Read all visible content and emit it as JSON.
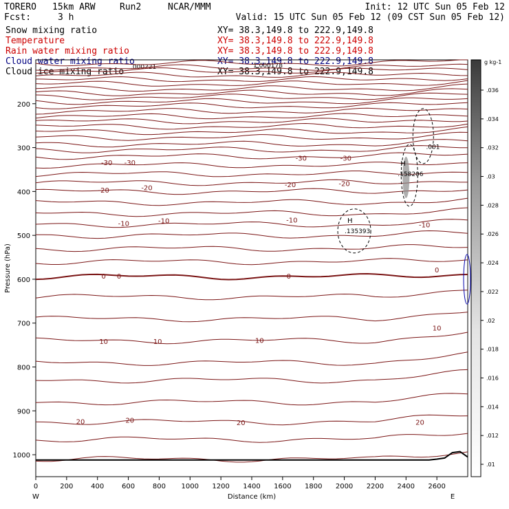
{
  "header": {
    "model": "TORERO",
    "resolution": "15km ARW",
    "run": "Run2",
    "org": "NCAR/MMM",
    "init": "Init: 12 UTC Sun 05 Feb 12",
    "fcst_label": "Fcst:",
    "fcst_value": "3 h",
    "valid": "Valid: 15 UTC Sun 05 Feb 12 (09 CST Sun 05 Feb 12)"
  },
  "fields": [
    {
      "name": "Snow mixing ratio",
      "xy": "XY=  38.3,149.8 to 222.9,149.8",
      "color": "#000000"
    },
    {
      "name": "Temperature",
      "xy": "XY=  38.3,149.8 to 222.9,149.8",
      "color": "#cc0000"
    },
    {
      "name": "Rain water mixing ratio",
      "xy": "XY=  38.3,149.8 to 222.9,149.8",
      "color": "#cc0000"
    },
    {
      "name": "Cloud water mixing ratio",
      "xy": "XY=  38.3,149.8 to 222.9,149.8",
      "color": "#000080"
    },
    {
      "name": "Cloud ice mixing ratio",
      "xy": "XY=  38.3,149.8 to 222.9,149.8",
      "color": "#000000"
    }
  ],
  "overlay_values": {
    "a": ".000221",
    "b": "1.000178"
  },
  "colors": {
    "temperature": "#7a1414",
    "zero_line": "#7a1414",
    "cloud_water": "#0000aa"
  },
  "chart_data": {
    "type": "cross-section",
    "xlabel": "Distance (km)",
    "ylabel": "Pressure (hPa)",
    "xlim": [
      0,
      2800
    ],
    "ylim": [
      1050,
      100
    ],
    "x_ticks": [
      0,
      200,
      400,
      600,
      800,
      1000,
      1200,
      1400,
      1600,
      1800,
      2000,
      2200,
      2400,
      2600
    ],
    "y_ticks": [
      200,
      300,
      400,
      500,
      600,
      700,
      800,
      900,
      1000
    ],
    "left_end": "W",
    "right_end": "E",
    "temperature_labels": [
      {
        "text": "-30",
        "x": 460,
        "p": 335
      },
      {
        "text": "-30",
        "x": 610,
        "p": 335
      },
      {
        "text": "-30",
        "x": 1720,
        "p": 325
      },
      {
        "text": "-30",
        "x": 2010,
        "p": 325
      },
      {
        "text": "-20",
        "x": 440,
        "p": 398
      },
      {
        "text": "-20",
        "x": 720,
        "p": 392
      },
      {
        "text": "-20",
        "x": 1650,
        "p": 385
      },
      {
        "text": "-20",
        "x": 2000,
        "p": 383
      },
      {
        "text": "-10",
        "x": 570,
        "p": 474
      },
      {
        "text": "-10",
        "x": 830,
        "p": 468
      },
      {
        "text": "-10",
        "x": 1660,
        "p": 466
      },
      {
        "text": "-10",
        "x": 2520,
        "p": 477
      },
      {
        "text": "0",
        "x": 440,
        "p": 594
      },
      {
        "text": "0",
        "x": 540,
        "p": 594
      },
      {
        "text": "0",
        "x": 1640,
        "p": 594
      },
      {
        "text": "0",
        "x": 2600,
        "p": 580
      },
      {
        "text": "10",
        "x": 440,
        "p": 743
      },
      {
        "text": "10",
        "x": 790,
        "p": 743
      },
      {
        "text": "10",
        "x": 1450,
        "p": 740
      },
      {
        "text": "10",
        "x": 2600,
        "p": 712
      },
      {
        "text": "20",
        "x": 290,
        "p": 925
      },
      {
        "text": "20",
        "x": 610,
        "p": 922
      },
      {
        "text": "20",
        "x": 1330,
        "p": 928
      },
      {
        "text": "20",
        "x": 2490,
        "p": 927
      }
    ],
    "snow_maxima": [
      {
        "marker": "H",
        "label": ".158206",
        "x": 2400,
        "p": 360
      },
      {
        "marker": "H",
        "label": ".135393",
        "x": 2020,
        "p": 490
      }
    ],
    "snow_contour_label": {
      "text": ".001",
      "x": 2530,
      "p": 298
    },
    "colorbar": {
      "units": "g kg-1",
      "ticks": [
        ".036",
        ".034",
        ".032",
        ".03",
        ".028",
        ".026",
        ".024",
        ".022",
        ".02",
        ".018",
        ".016",
        ".014",
        ".012",
        ".01"
      ]
    }
  }
}
